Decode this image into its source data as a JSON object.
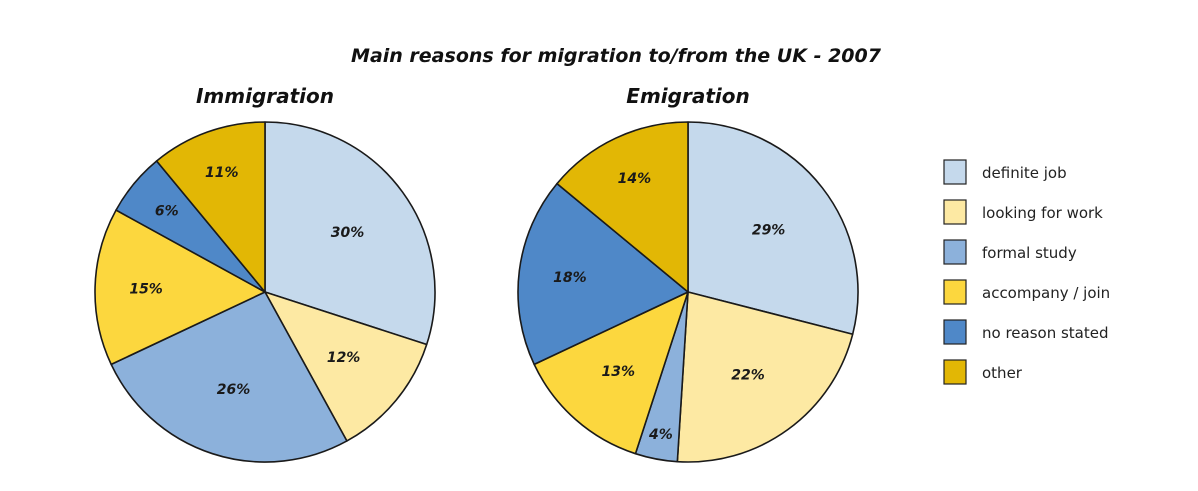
{
  "chart_data": {
    "type": "pie",
    "title": "Main reasons for migration to/from the UK - 2007",
    "categories": [
      "definite job",
      "looking for work",
      "formal study",
      "accompany / join",
      "no reason stated",
      "other"
    ],
    "colors": {
      "definite job": "#c5d9ec",
      "looking for work": "#fde9a3",
      "formal study": "#8cb1db",
      "accompany / join": "#fcd73e",
      "no reason stated": "#4f88c8",
      "other": "#e2b705"
    },
    "legend_position": "right",
    "pies": [
      {
        "name": "Immigration",
        "slices": [
          {
            "category": "definite job",
            "value": 30,
            "label": "30%"
          },
          {
            "category": "looking for work",
            "value": 12,
            "label": "12%"
          },
          {
            "category": "formal study",
            "value": 26,
            "label": "26%"
          },
          {
            "category": "accompany / join",
            "value": 15,
            "label": "15%"
          },
          {
            "category": "no reason stated",
            "value": 6,
            "label": "6%"
          },
          {
            "category": "other",
            "value": 11,
            "label": "11%"
          }
        ]
      },
      {
        "name": "Emigration",
        "slices": [
          {
            "category": "definite job",
            "value": 29,
            "label": "29%"
          },
          {
            "category": "looking for work",
            "value": 22,
            "label": "22%"
          },
          {
            "category": "formal study",
            "value": 4,
            "label": "4%"
          },
          {
            "category": "accompany / join",
            "value": 13,
            "label": "13%"
          },
          {
            "category": "no reason stated",
            "value": 18,
            "label": "18%"
          },
          {
            "category": "other",
            "value": 14,
            "label": "14%"
          }
        ]
      }
    ]
  }
}
